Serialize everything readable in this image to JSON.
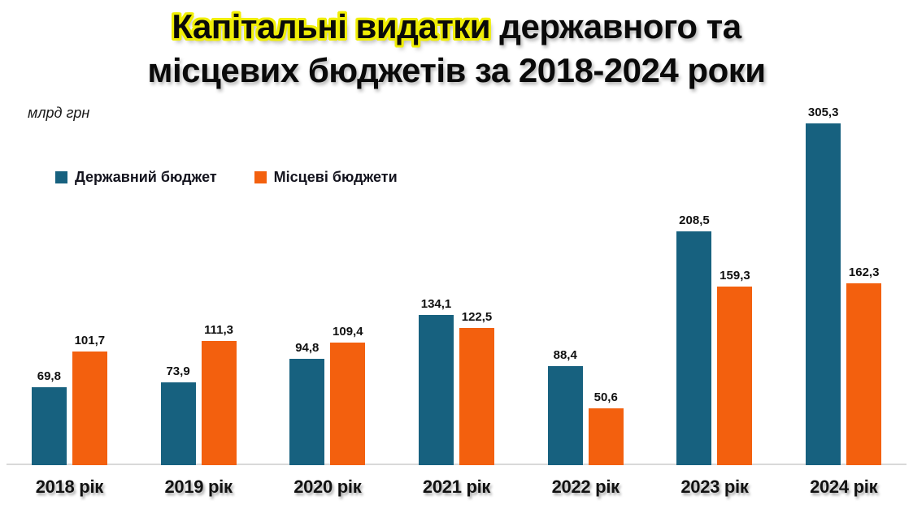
{
  "title": {
    "highlight": "Капітальні видатки",
    "rest_line1": " державного та",
    "line2": "місцевих бюджетів за 2018-2024 роки"
  },
  "unit_label": "млрд грн",
  "colors": {
    "state_budget": "#17617f",
    "local_budget": "#f3600e",
    "highlight_yellow": "#f0ee06",
    "axis_line": "#d9d9d9"
  },
  "legend": [
    {
      "label": "Державний бюджет",
      "color": "#17617f"
    },
    {
      "label": "Місцеві бюджети",
      "color": "#f3600e"
    }
  ],
  "chart_data": {
    "type": "bar",
    "title": "Капітальні видатки державного та місцевих бюджетів за 2018-2024 роки",
    "ylabel": "млрд грн",
    "categories": [
      "2018 рік",
      "2019 рік",
      "2020 рік",
      "2021 рік",
      "2022 рік",
      "2023 рік",
      "2024 рік"
    ],
    "series": [
      {
        "name": "Державний бюджет",
        "color": "#17617f",
        "values": [
          69.8,
          73.9,
          94.8,
          134.1,
          88.4,
          208.5,
          305.3
        ]
      },
      {
        "name": "Місцеві бюджети",
        "color": "#f3600e",
        "values": [
          101.7,
          111.3,
          109.4,
          122.5,
          50.6,
          159.3,
          162.3
        ]
      }
    ],
    "value_labels_shown": true,
    "decimal_separator": ",",
    "ylim": [
      0,
      320
    ],
    "grid": false,
    "legend_position": "top-left"
  }
}
